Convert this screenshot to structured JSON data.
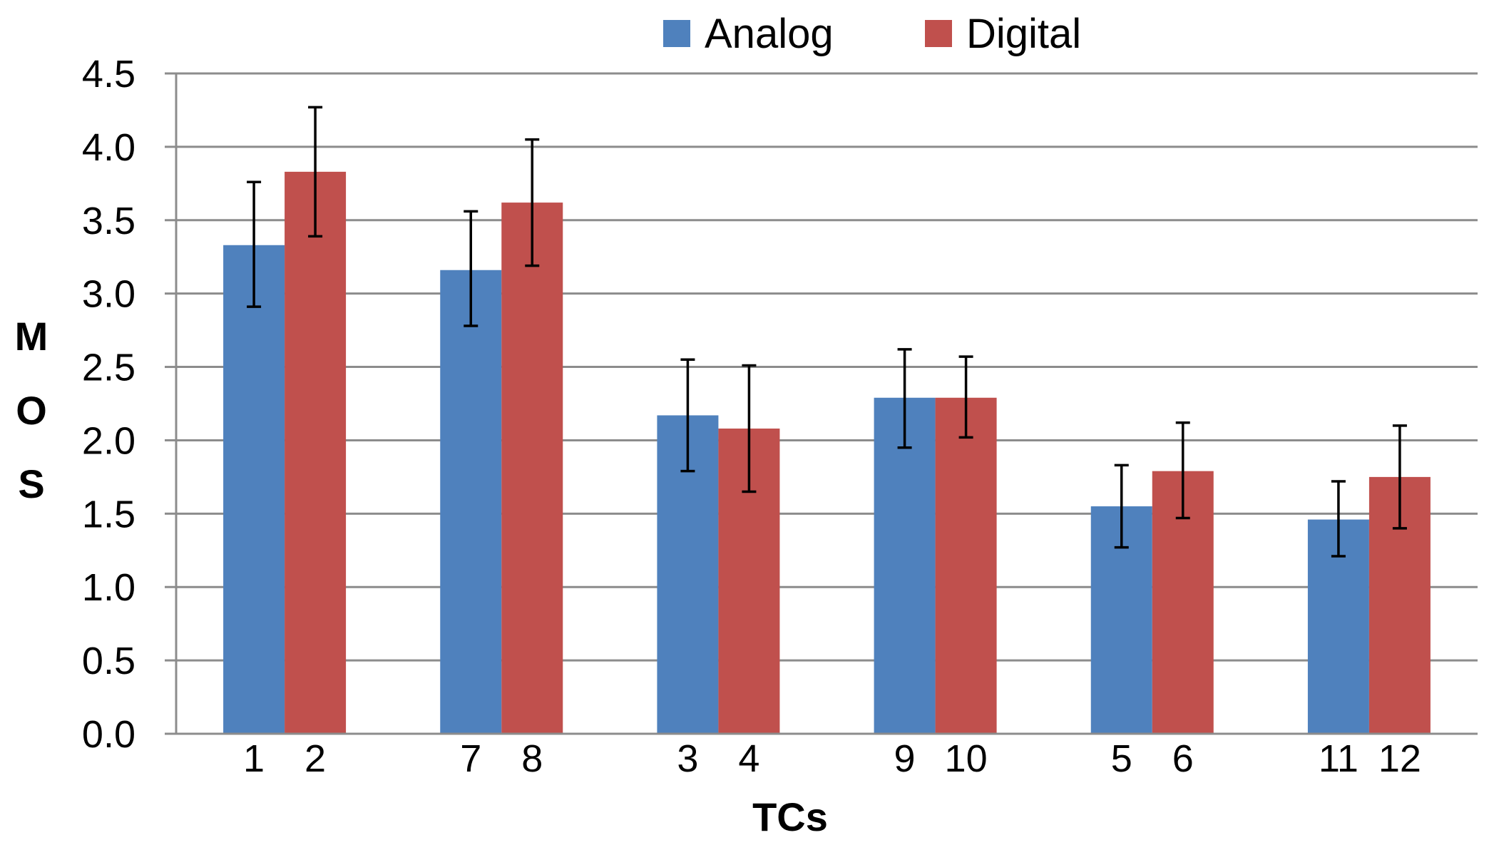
{
  "chart_data": {
    "type": "bar",
    "title": "",
    "xlabel": "TCs",
    "ylabel": "MOS",
    "ylabel_letters": [
      "M",
      "O",
      "S"
    ],
    "ylim": [
      0,
      4.5
    ],
    "yticks": [
      "0.0",
      "0.5",
      "1.0",
      "1.5",
      "2.0",
      "2.5",
      "3.0",
      "3.5",
      "4.0",
      "4.5"
    ],
    "grid": true,
    "legend_position": "top-center",
    "groups": [
      {
        "labels": [
          "1",
          "2"
        ]
      },
      {
        "labels": [
          "7",
          "8"
        ]
      },
      {
        "labels": [
          "3",
          "4"
        ]
      },
      {
        "labels": [
          "9",
          "10"
        ]
      },
      {
        "labels": [
          "5",
          "6"
        ]
      },
      {
        "labels": [
          "11",
          "12"
        ]
      }
    ],
    "series": [
      {
        "name": "Analog",
        "color": "#4F81BD",
        "values": [
          3.33,
          3.16,
          2.17,
          2.29,
          1.55,
          1.46
        ],
        "err_low": [
          2.91,
          2.78,
          1.79,
          1.95,
          1.27,
          1.21
        ],
        "err_high": [
          3.76,
          3.56,
          2.55,
          2.62,
          1.83,
          1.72
        ]
      },
      {
        "name": "Digital",
        "color": "#C0504D",
        "values": [
          3.83,
          3.62,
          2.08,
          2.29,
          1.79,
          1.75
        ],
        "err_low": [
          3.39,
          3.19,
          1.65,
          2.02,
          1.47,
          1.4
        ],
        "err_high": [
          4.27,
          4.05,
          2.51,
          2.57,
          2.12,
          2.1
        ]
      }
    ]
  }
}
